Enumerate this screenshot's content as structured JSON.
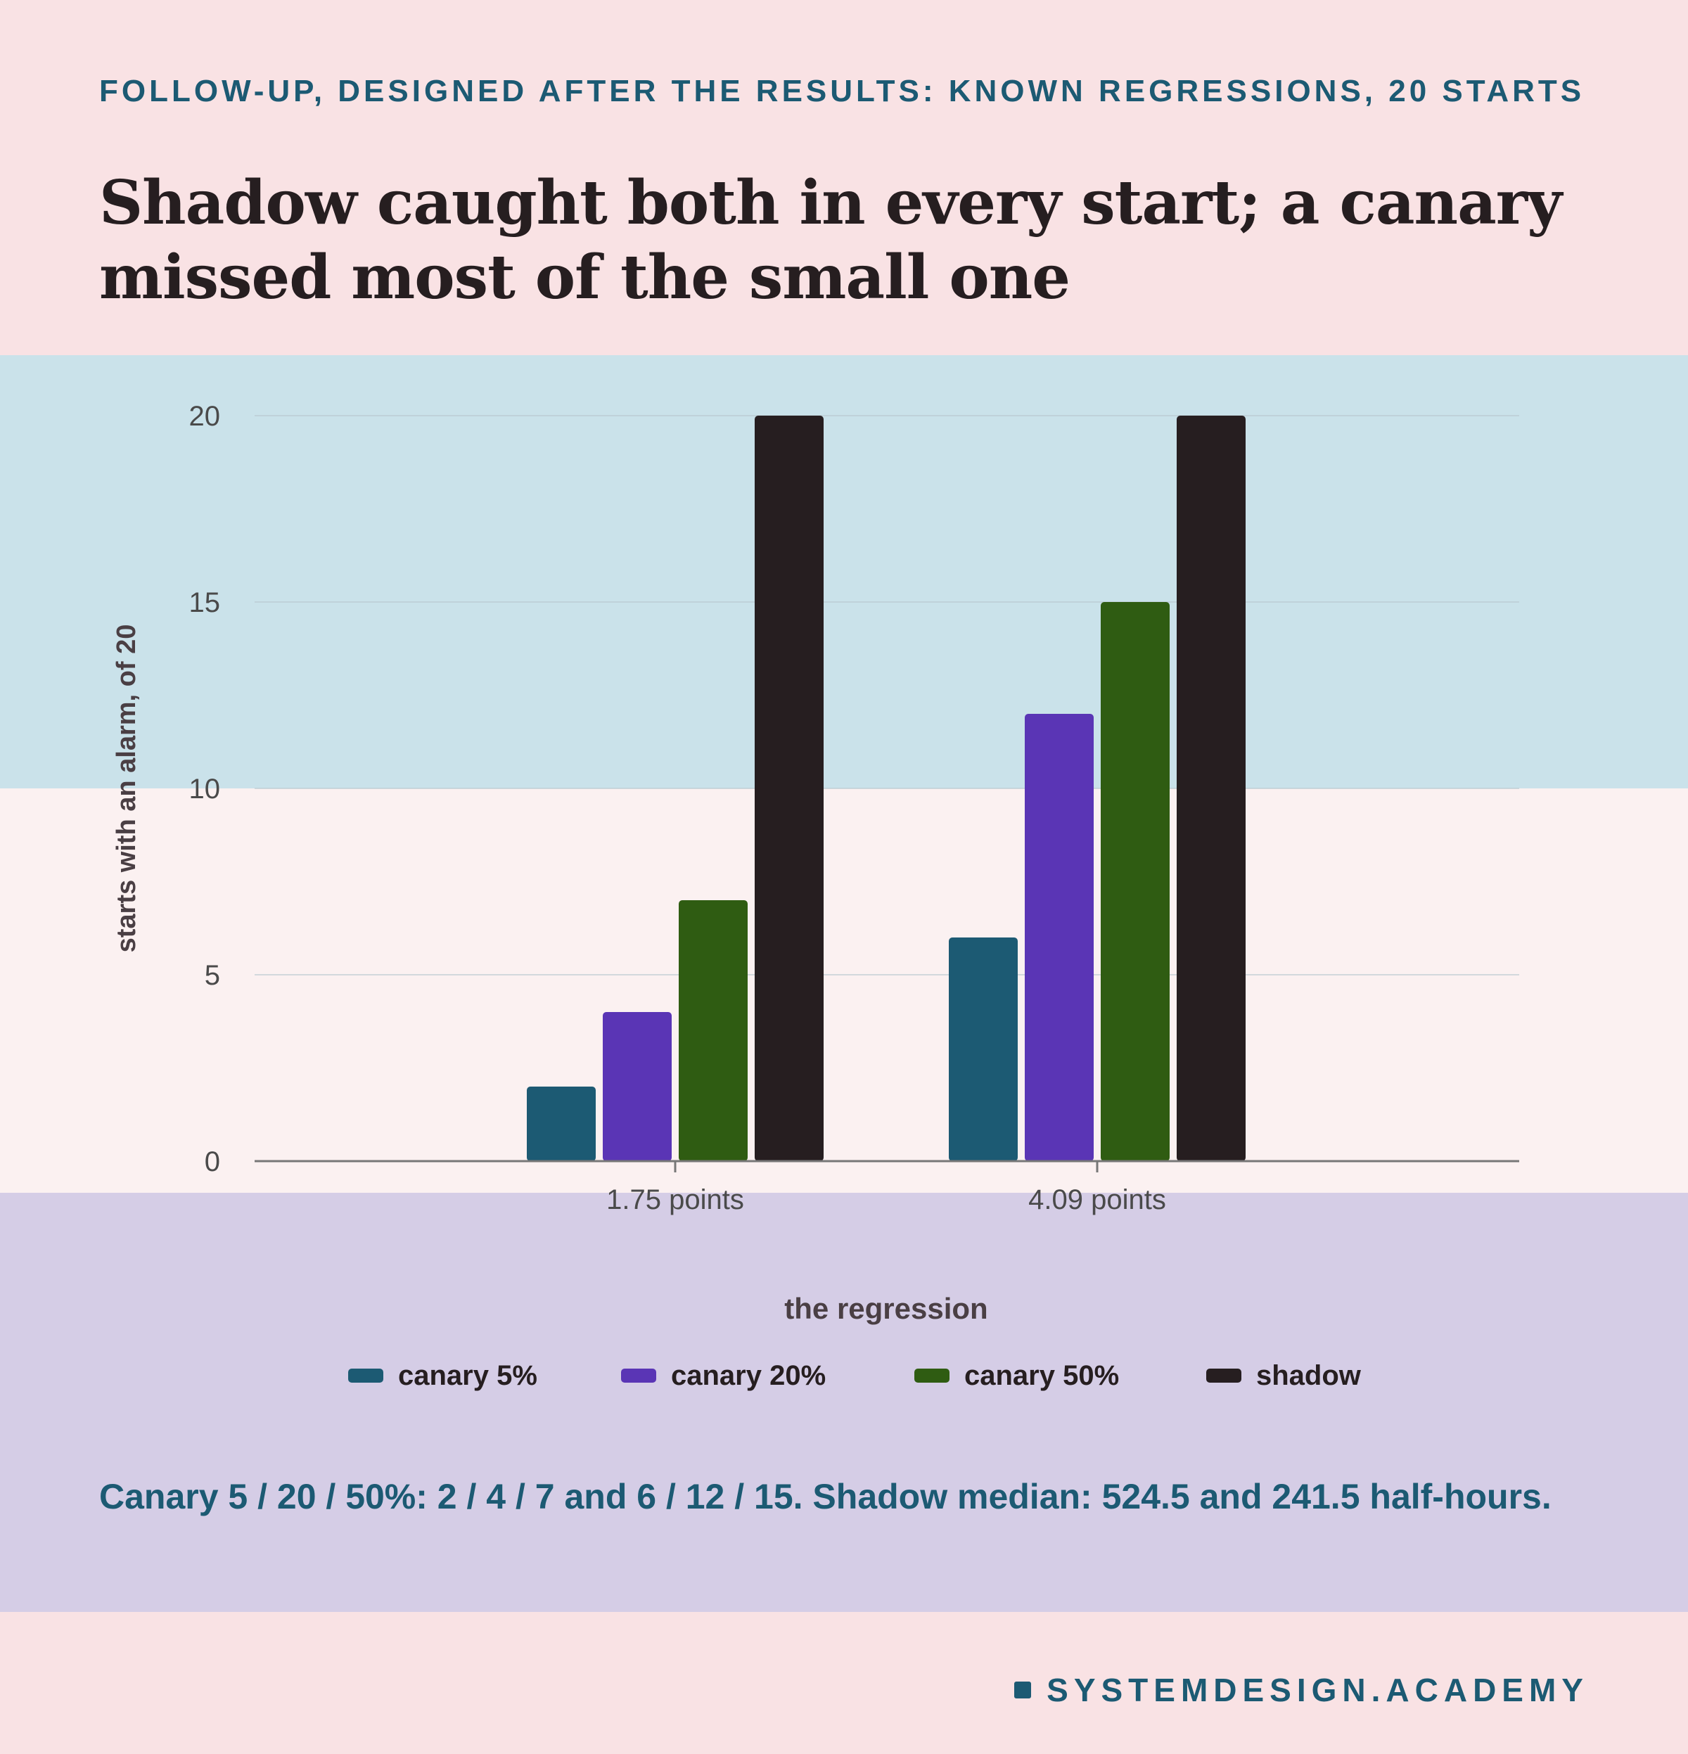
{
  "header": {
    "kicker": "FOLLOW-UP, DESIGNED AFTER THE RESULTS: KNOWN REGRESSIONS, 20 STARTS",
    "headline": "Shadow caught both in every start; a canary missed most of the small one"
  },
  "chart_data": {
    "type": "bar",
    "categories": [
      "1.75 points",
      "4.09 points"
    ],
    "series": [
      {
        "name": "canary 5%",
        "values": [
          2,
          6
        ],
        "color": "#1c5a73"
      },
      {
        "name": "canary 20%",
        "values": [
          4,
          12
        ],
        "color": "#5a35b5"
      },
      {
        "name": "canary 50%",
        "values": [
          7,
          15
        ],
        "color": "#2f5c12"
      },
      {
        "name": "shadow",
        "values": [
          20,
          20
        ],
        "color": "#261e20"
      }
    ],
    "xlabel": "the regression",
    "ylabel": "starts with an alarm, of 20",
    "ylim": [
      0,
      20
    ],
    "yticks": [
      0,
      5,
      10,
      15,
      20
    ],
    "grid": true,
    "legend": "bottom-center",
    "bands": [
      {
        "from": 10,
        "to": 20,
        "color": "#cae2ea"
      },
      {
        "from": 0,
        "to": 10,
        "color": "#fbf1f1"
      }
    ]
  },
  "footnote": "Canary 5 / 20 / 50%: 2 / 4 / 7 and 6 / 12 / 15. Shadow median: 524.5 and 241.5 half-hours.",
  "brand": "SYSTEMDESIGN.ACADEMY",
  "colors": {
    "background": "#f9e2e4",
    "lower_panel": "#d5cde6",
    "accent": "#1c5a73",
    "text_dark": "#261e20"
  }
}
